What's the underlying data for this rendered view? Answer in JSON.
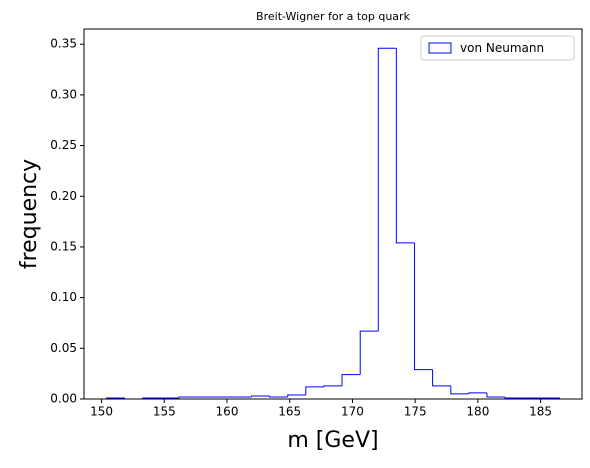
{
  "chart_data": {
    "type": "histogram",
    "title": "Breit-Wigner for a top quark",
    "x_label": "m [GeV]",
    "y_label": "frequency",
    "bins": [
      150.4,
      151.84,
      153.29,
      154.73,
      156.18,
      157.62,
      159.06,
      160.51,
      161.95,
      163.4,
      164.84,
      166.28,
      167.73,
      169.17,
      170.62,
      172.06,
      173.5,
      174.95,
      176.39,
      177.84,
      179.28,
      180.72,
      182.17,
      183.61,
      185.06,
      186.5
    ],
    "series": [
      {
        "name": "von Neumann",
        "color": "#0000ff",
        "values": [
          0.001,
          0,
          0.001,
          0.001,
          0.002,
          0.002,
          0.002,
          0.002,
          0.003,
          0.002,
          0.004,
          0.012,
          0.013,
          0.024,
          0.067,
          0.346,
          0.154,
          0.029,
          0.013,
          0.005,
          0.006,
          0.002,
          0.001,
          0.001,
          0.001
        ]
      }
    ],
    "xlim": [
      148.6,
      188.3
    ],
    "ylim": [
      0,
      0.365
    ],
    "xticks": [
      150,
      155,
      160,
      165,
      170,
      175,
      180,
      185
    ],
    "yticks": [
      {
        "value": 0,
        "label": "0.00"
      },
      {
        "value": 0.05,
        "label": "0.05"
      },
      {
        "value": 0.1,
        "label": "0.10"
      },
      {
        "value": 0.15,
        "label": "0.15"
      },
      {
        "value": 0.2,
        "label": "0.20"
      },
      {
        "value": 0.25,
        "label": "0.25"
      },
      {
        "value": 0.3,
        "label": "0.30"
      },
      {
        "value": 0.35,
        "label": "0.35"
      }
    ],
    "legend": "upper right"
  }
}
